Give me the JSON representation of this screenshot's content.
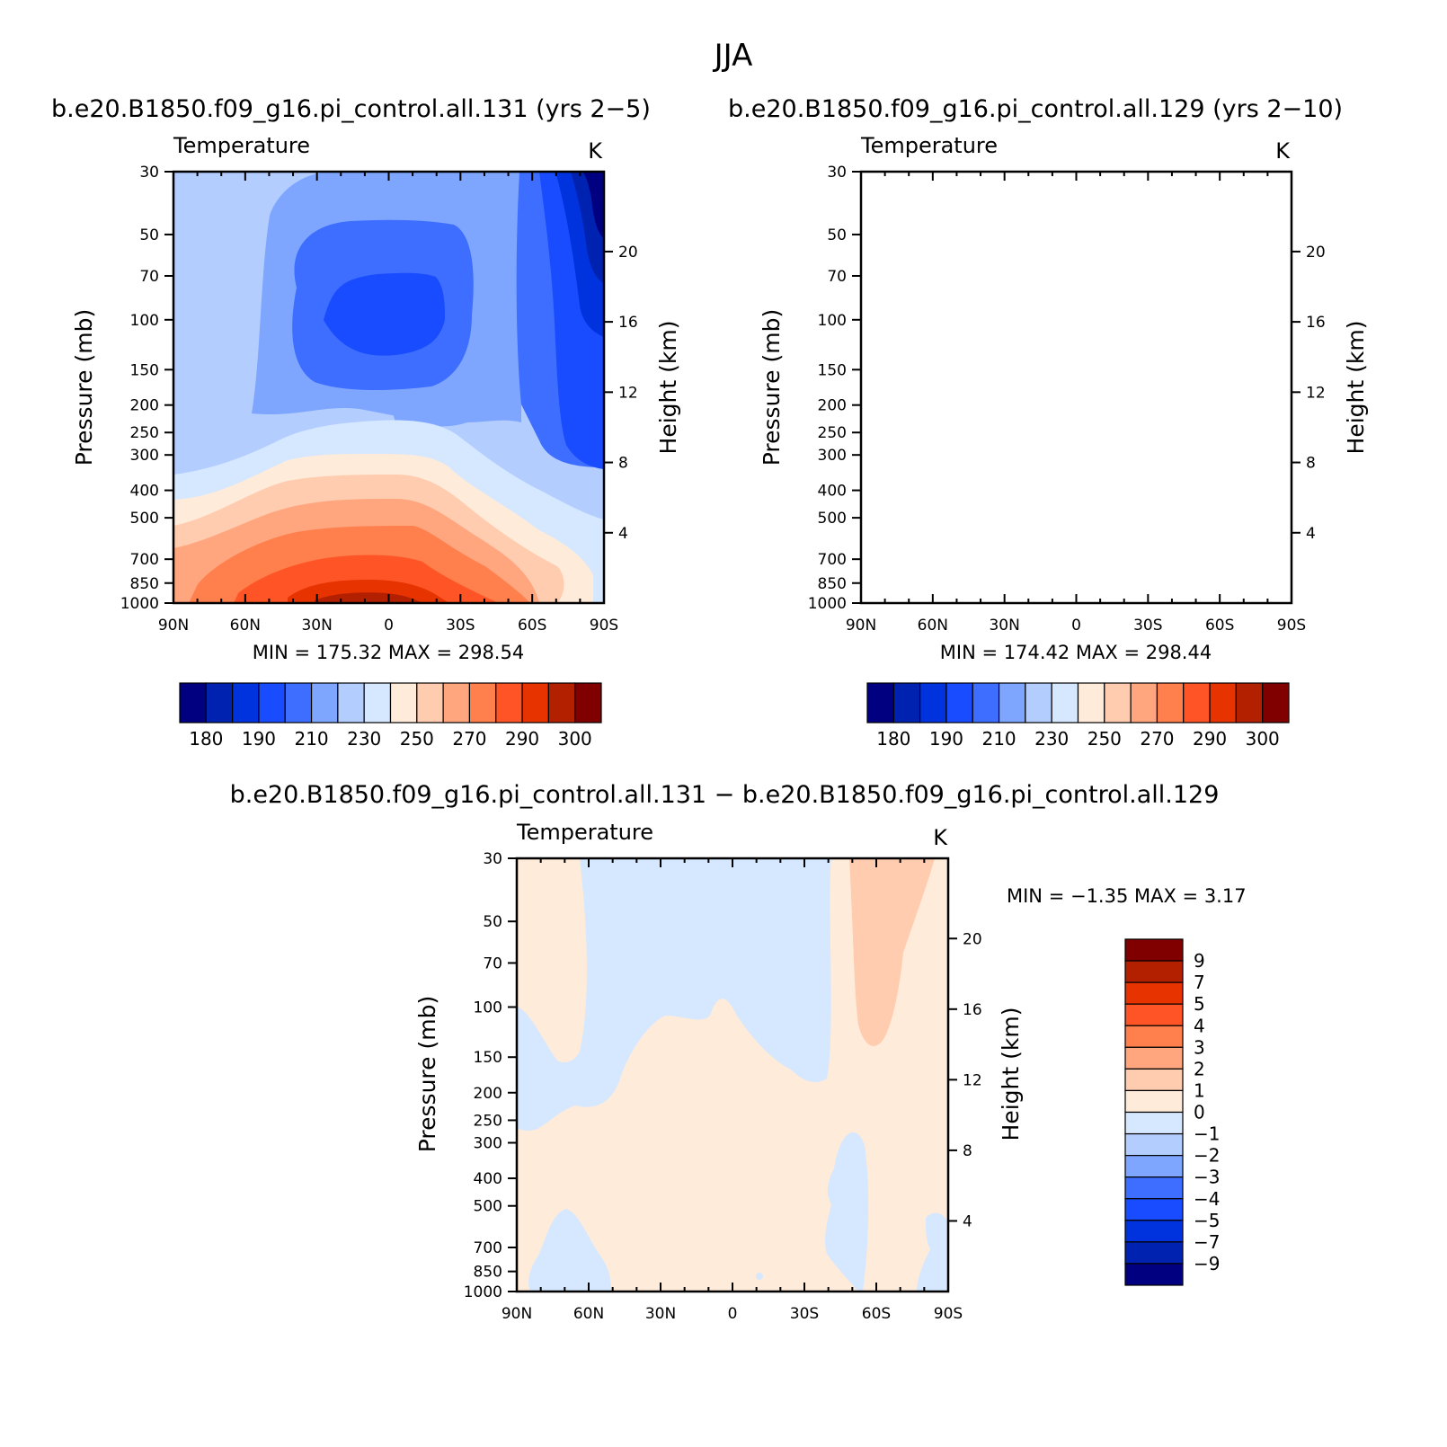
{
  "figure": {
    "title": "JJA"
  },
  "chart_data": [
    {
      "type": "contour",
      "id": "left",
      "title": "b.e20.B1850.f09_g16.pi_control.all.131 (yrs 2−5)",
      "left_label": "Temperature",
      "units": "K",
      "ylabel": "Pressure (mb)",
      "y2label": "Height (km)",
      "xticks": [
        "90N",
        "60N",
        "30N",
        "0",
        "30S",
        "60S",
        "90S"
      ],
      "yticks": [
        "30",
        "50",
        "70",
        "100",
        "150",
        "200",
        "250",
        "300",
        "400",
        "500",
        "700",
        "850",
        "1000"
      ],
      "y2ticks": [
        "20",
        "16",
        "12",
        "8",
        "4"
      ],
      "min_max": "MIN = 175.32   MAX = 298.54",
      "colorbar_labels": [
        "180",
        "190",
        "210",
        "230",
        "250",
        "270",
        "290",
        "300"
      ],
      "levels": [
        175,
        180,
        185,
        190,
        200,
        210,
        220,
        230,
        240,
        250,
        260,
        270,
        280,
        290,
        300
      ]
    },
    {
      "type": "contour",
      "id": "right",
      "title": "b.e20.B1850.f09_g16.pi_control.all.129 (yrs 2−10)",
      "left_label": "Temperature",
      "units": "K",
      "ylabel": "Pressure (mb)",
      "y2label": "Height (km)",
      "xticks": [
        "90N",
        "60N",
        "30N",
        "0",
        "30S",
        "60S",
        "90S"
      ],
      "yticks": [
        "30",
        "50",
        "70",
        "100",
        "150",
        "200",
        "250",
        "300",
        "400",
        "500",
        "700",
        "850",
        "1000"
      ],
      "y2ticks": [
        "20",
        "16",
        "12",
        "8",
        "4"
      ],
      "min_max": "MIN = 174.42   MAX = 298.44",
      "colorbar_labels": [
        "180",
        "190",
        "210",
        "230",
        "250",
        "270",
        "290",
        "300"
      ],
      "levels": [
        175,
        180,
        185,
        190,
        200,
        210,
        220,
        230,
        240,
        250,
        260,
        270,
        280,
        290,
        300
      ]
    },
    {
      "type": "contour",
      "id": "diff",
      "title": "b.e20.B1850.f09_g16.pi_control.all.131 − b.e20.B1850.f09_g16.pi_control.all.129",
      "left_label": "Temperature",
      "units": "K",
      "ylabel": "Pressure (mb)",
      "y2label": "Height (km)",
      "xticks": [
        "90N",
        "60N",
        "30N",
        "0",
        "30S",
        "60S",
        "90S"
      ],
      "yticks": [
        "30",
        "50",
        "70",
        "100",
        "150",
        "200",
        "250",
        "300",
        "400",
        "500",
        "700",
        "850",
        "1000"
      ],
      "y2ticks": [
        "20",
        "16",
        "12",
        "8",
        "4"
      ],
      "min_max": "MIN =   −1.35   MAX =    3.17",
      "colorbar_labels": [
        "9",
        "7",
        "5",
        "4",
        "3",
        "2",
        "1",
        "0",
        "−1",
        "−2",
        "−3",
        "−4",
        "−5",
        "−7",
        "−9"
      ]
    }
  ],
  "palette_16": [
    "#000080",
    "#0022b0",
    "#0033dd",
    "#1a4cff",
    "#3d6eff",
    "#7fa6ff",
    "#b3cdff",
    "#d5e8ff",
    "#ffebd9",
    "#ffccb0",
    "#ffa67f",
    "#ff7f4d",
    "#ff5526",
    "#e63300",
    "#b32000",
    "#800000"
  ]
}
